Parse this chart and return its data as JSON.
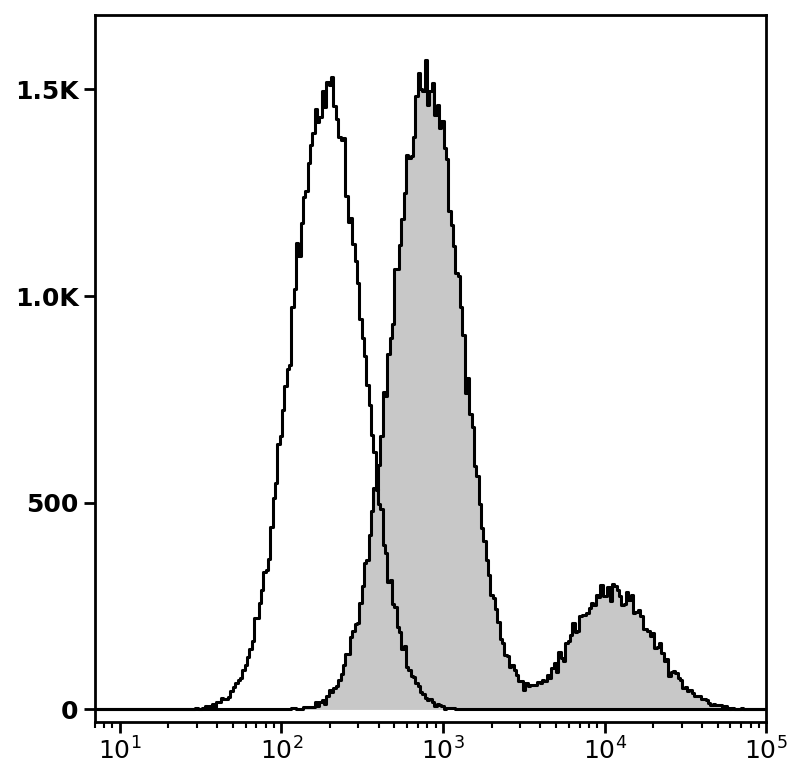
{
  "xlim": [
    7,
    100000
  ],
  "ylim": [
    -30,
    1680
  ],
  "yticks": [
    0,
    500,
    1000,
    1500
  ],
  "ytick_labels": [
    "0",
    "500",
    "1.0K",
    "1.5K"
  ],
  "background_color": "#ffffff",
  "isotype_color": "#000000",
  "antibody_fill_color": "#c8c8c8",
  "antibody_edge_color": "#000000",
  "isotype_linewidth": 2.2,
  "antibody_linewidth": 2.2,
  "isotype_peak_y": 1530,
  "antibody_peak_y": 1570,
  "isotype_log_mean": 2.28,
  "isotype_log_std": 0.22,
  "isotype_n": 80000,
  "ab_log_mean1": 2.9,
  "ab_log_std1": 0.22,
  "ab_n1": 70000,
  "ab_log_mean2": 4.05,
  "ab_log_std2": 0.25,
  "ab_n2": 15000,
  "n_bins": 300,
  "bin_min": 7,
  "bin_max": 150000
}
